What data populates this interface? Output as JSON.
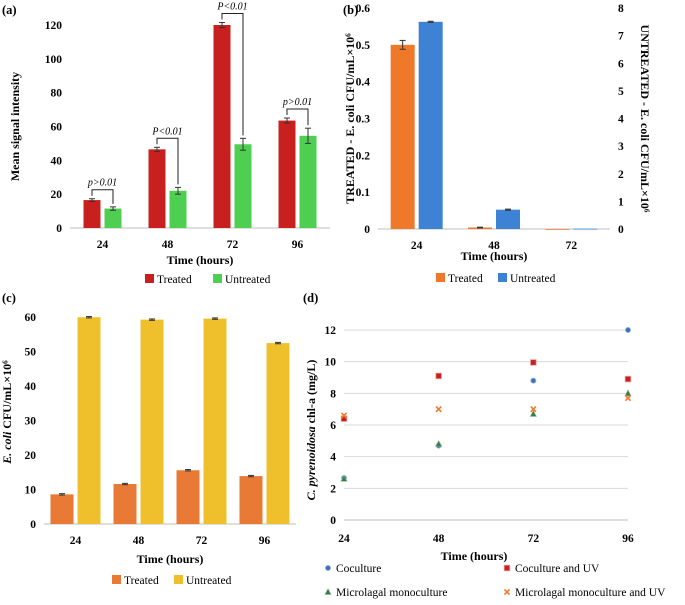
{
  "chart_data": [
    {
      "panel": "(a)",
      "type": "bar",
      "categories": [
        "24",
        "48",
        "72",
        "96"
      ],
      "series": [
        {
          "name": "Treated",
          "color": "#c8201e",
          "values": [
            16.5,
            46.5,
            120,
            63.5
          ],
          "errors": [
            0.8,
            1.2,
            1.5,
            1.5
          ]
        },
        {
          "name": "Untreated",
          "color": "#4fcf52",
          "values": [
            11.5,
            22,
            49.5,
            54.5
          ],
          "errors": [
            1,
            2,
            3.5,
            4.5
          ]
        }
      ],
      "annotations": [
        "p>0.01",
        "P<0.01",
        "P<0.01",
        "p>0.01"
      ],
      "xlabel": "Time (hours)",
      "ylabel": "Mean signal intensity",
      "ylim": [
        0,
        120
      ],
      "yticks": [
        0,
        20,
        40,
        60,
        80,
        100,
        120
      ]
    },
    {
      "panel": "(b)",
      "type": "bar",
      "categories": [
        "24",
        "48",
        "72"
      ],
      "series": [
        {
          "name": "Treated",
          "color": "#f0782a",
          "values": [
            0.5,
            0.004,
            0
          ],
          "errors": [
            0.012,
            0.001,
            0
          ],
          "axis": "left"
        },
        {
          "name": "Untreated",
          "color": "#3e82d6",
          "values": [
            7.5,
            0.7,
            0.01
          ],
          "errors": [
            0.02,
            0.02,
            0
          ],
          "axis": "right"
        }
      ],
      "xlabel": "Time (hours)",
      "ylabel": "TREATED - E. coli CFU/mL×10⁶",
      "ylabel_right": "UNTREATED - E. coli CFU/mL×10⁶",
      "ylim": [
        0,
        0.6
      ],
      "ylim_right": [
        0,
        8
      ],
      "yticks": [
        "0",
        "0.1",
        "0.2",
        "0.3",
        "0.4",
        "0.5",
        "0.6"
      ],
      "yticks_right": [
        "0",
        "1",
        "2",
        "3",
        "4",
        "5",
        "6",
        "7",
        "8"
      ]
    },
    {
      "panel": "(c)",
      "type": "bar",
      "categories": [
        "24",
        "48",
        "72",
        "96"
      ],
      "series": [
        {
          "name": "Treated",
          "color": "#e87a35",
          "values": [
            8.6,
            11.6,
            15.6,
            13.9
          ],
          "errors": [
            0.2,
            0.2,
            0.2,
            0.2
          ]
        },
        {
          "name": "Untreated",
          "color": "#f0c02c",
          "values": [
            60,
            59.3,
            59.6,
            52.5
          ],
          "errors": [
            0.2,
            0.2,
            0.2,
            0.2
          ]
        }
      ],
      "xlabel": "Time (hours)",
      "ylabel_prefix": "E. coli",
      "ylabel_suffix": " CFU/mL×10⁶",
      "ylim": [
        0,
        65
      ],
      "yticks": [
        0,
        10,
        20,
        30,
        40,
        50,
        60
      ]
    },
    {
      "panel": "(d)",
      "type": "scatter",
      "x": [
        24,
        48,
        72,
        96
      ],
      "series": [
        {
          "name": "Coculture",
          "color": "#3f72b8",
          "marker": "circle",
          "values": [
            2.65,
            4.7,
            8.8,
            12
          ]
        },
        {
          "name": "Coculture and UV",
          "color": "#c8201e",
          "marker": "square",
          "values": [
            6.4,
            9.1,
            9.95,
            8.9
          ]
        },
        {
          "name": "Microlagal monoculture",
          "color": "#3b7a46",
          "marker": "triangle",
          "values": [
            2.6,
            4.8,
            6.7,
            8
          ]
        },
        {
          "name": "Microlagal monoculture and UV",
          "color": "#f07a2a",
          "marker": "x",
          "values": [
            6.6,
            7,
            7,
            7.7
          ]
        }
      ],
      "xlabel": "Time (hours)",
      "ylabel_prefix": "C. pyrenoidosa",
      "ylabel_suffix": " chl-a (mg/L)",
      "xlim": [
        24,
        96
      ],
      "ylim": [
        0,
        12
      ],
      "xticks": [
        24,
        48,
        72,
        96
      ],
      "yticks": [
        0,
        2,
        4,
        6,
        8,
        10,
        12
      ]
    }
  ]
}
